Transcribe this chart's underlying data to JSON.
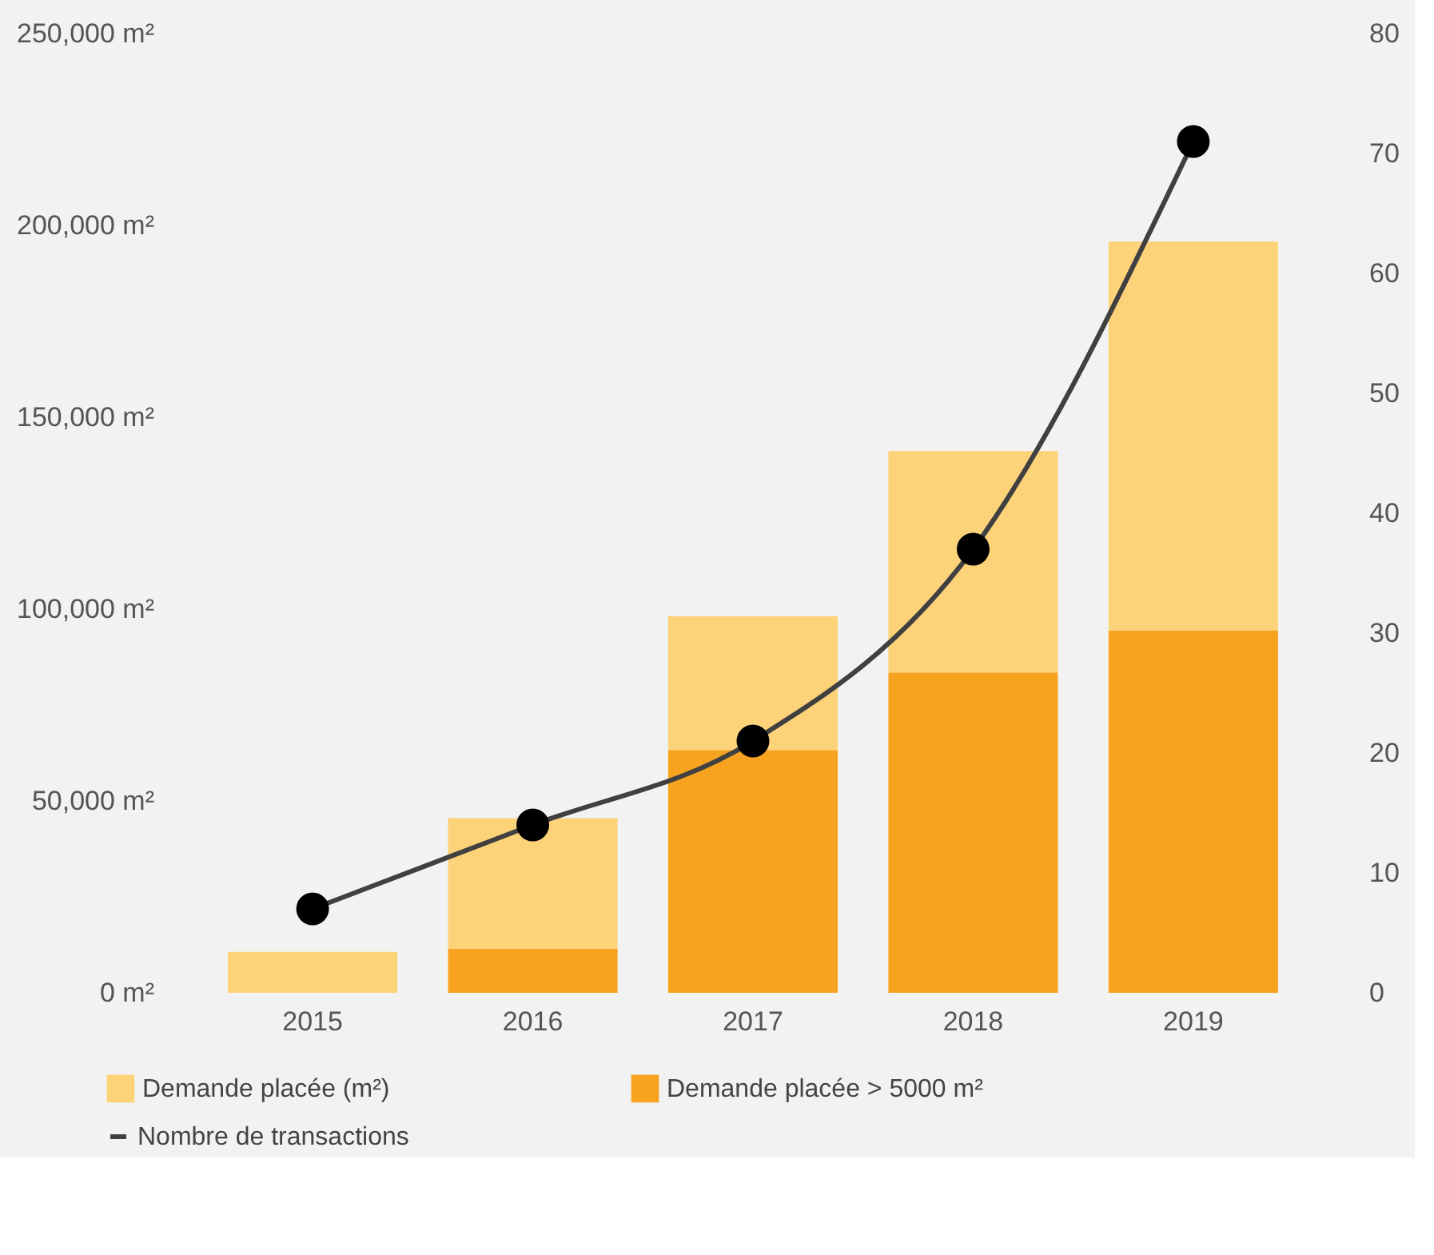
{
  "chart_data": {
    "type": "bar",
    "stacked": true,
    "categories": [
      "2015",
      "2016",
      "2017",
      "2018",
      "2019"
    ],
    "series": [
      {
        "name": "Demande placée > 5000 m²",
        "color": "#f8a31f",
        "values": [
          0,
          11500,
          63300,
          83500,
          94500
        ]
      },
      {
        "name": "Demande placée (m²)",
        "color": "#fdd37a",
        "values": [
          10700,
          34000,
          34800,
          57700,
          101300
        ]
      },
      {
        "name": "Nombre de transactions",
        "type": "line",
        "axis": "y2",
        "color": "#404040",
        "marker": "circle",
        "values": [
          7,
          14,
          21,
          37,
          71
        ]
      }
    ],
    "ylim": [
      0,
      250000
    ],
    "yticks": [
      {
        "value": 0,
        "label": "0 m²"
      },
      {
        "value": 50000,
        "label": "50,000 m²"
      },
      {
        "value": 100000,
        "label": "100,000 m²"
      },
      {
        "value": 150000,
        "label": "150,000 m²"
      },
      {
        "value": 200000,
        "label": "200,000 m²"
      },
      {
        "value": 250000,
        "label": "250,000 m²"
      }
    ],
    "y2lim": [
      0,
      80
    ],
    "y2ticks": [
      0,
      10,
      20,
      30,
      40,
      50,
      60,
      70,
      80
    ],
    "grid": false,
    "legend": "bottom"
  }
}
